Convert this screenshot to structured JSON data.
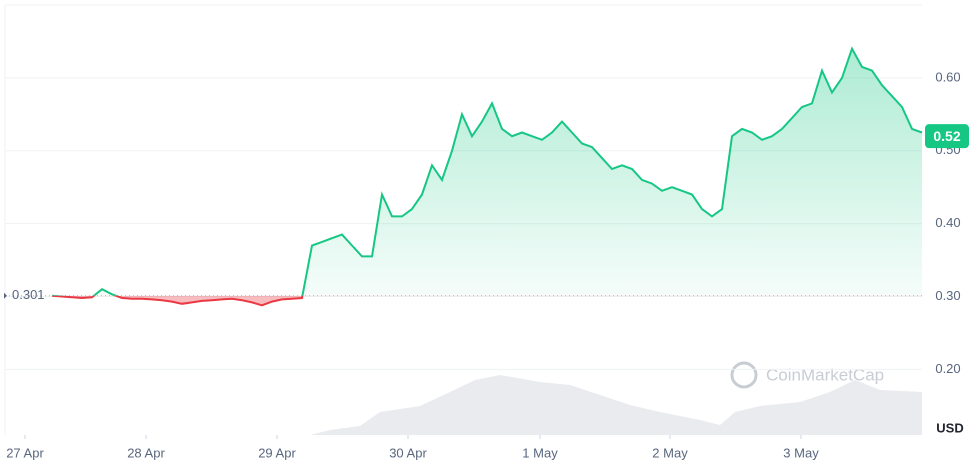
{
  "chart_data": {
    "type": "line",
    "values": [
      0.301,
      0.3,
      0.299,
      0.298,
      0.299,
      0.31,
      0.303,
      0.298,
      0.297,
      0.297,
      0.296,
      0.295,
      0.293,
      0.29,
      0.292,
      0.294,
      0.295,
      0.296,
      0.297,
      0.295,
      0.292,
      0.288,
      0.293,
      0.296,
      0.297,
      0.298,
      0.37,
      0.375,
      0.38,
      0.385,
      0.37,
      0.355,
      0.355,
      0.44,
      0.41,
      0.41,
      0.42,
      0.44,
      0.48,
      0.46,
      0.5,
      0.55,
      0.52,
      0.54,
      0.565,
      0.53,
      0.52,
      0.525,
      0.52,
      0.515,
      0.525,
      0.54,
      0.525,
      0.51,
      0.505,
      0.49,
      0.475,
      0.48,
      0.475,
      0.46,
      0.455,
      0.445,
      0.45,
      0.445,
      0.44,
      0.42,
      0.41,
      0.42,
      0.52,
      0.53,
      0.525,
      0.515,
      0.52,
      0.53,
      0.545,
      0.56,
      0.565,
      0.61,
      0.58,
      0.6,
      0.64,
      0.615,
      0.61,
      0.59,
      0.575,
      0.56,
      0.53,
      0.525
    ],
    "xlim": [
      -4.7,
      87
    ],
    "xticks": [
      {
        "value": -2.7,
        "label": "27 Apr"
      },
      {
        "value": 9.4,
        "label": "28 Apr"
      },
      {
        "value": 22.5,
        "label": "29 Apr"
      },
      {
        "value": 35.6,
        "label": "30 Apr"
      },
      {
        "value": 48.8,
        "label": "1 May"
      },
      {
        "value": 61.8,
        "label": "2 May"
      },
      {
        "value": 74.9,
        "label": "3 May"
      }
    ],
    "ylim": [
      0.11,
      0.7
    ],
    "yticks": [
      {
        "value": 0.2,
        "label": "0.20"
      },
      {
        "value": 0.3,
        "label": "0.30"
      },
      {
        "value": 0.4,
        "label": "0.40"
      },
      {
        "value": 0.5,
        "label": "0.50"
      },
      {
        "value": 0.6,
        "label": "0.60"
      }
    ],
    "baseline": 0.301,
    "current_price": 0.52,
    "up_color": "#16c784",
    "down_color": "#ea3943",
    "currency": "USD",
    "watermark": "CoinMarketCap",
    "grid": true
  }
}
